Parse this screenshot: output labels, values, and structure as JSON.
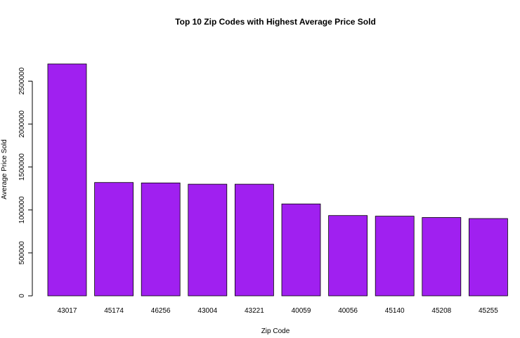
{
  "chart_data": {
    "type": "bar",
    "title": "Top 10 Zip Codes with Highest Average Price Sold",
    "xlabel": "Zip Code",
    "ylabel": "Average Price Sold",
    "categories": [
      "43017",
      "45174",
      "46256",
      "43004",
      "43221",
      "40059",
      "40056",
      "45140",
      "45208",
      "45255"
    ],
    "values": [
      2700000,
      1320000,
      1315000,
      1300000,
      1300000,
      1070000,
      935000,
      928000,
      912000,
      900000
    ],
    "ylim": [
      0,
      2700000
    ],
    "yticks": [
      0,
      500000,
      1000000,
      1500000,
      2000000,
      2500000
    ],
    "ytick_labels": [
      "0",
      "500000",
      "1000000",
      "1500000",
      "2000000",
      "2500000"
    ],
    "grid": false,
    "legend": "none",
    "bar_color": "#A020F0",
    "bar_stroke": "#000000"
  }
}
